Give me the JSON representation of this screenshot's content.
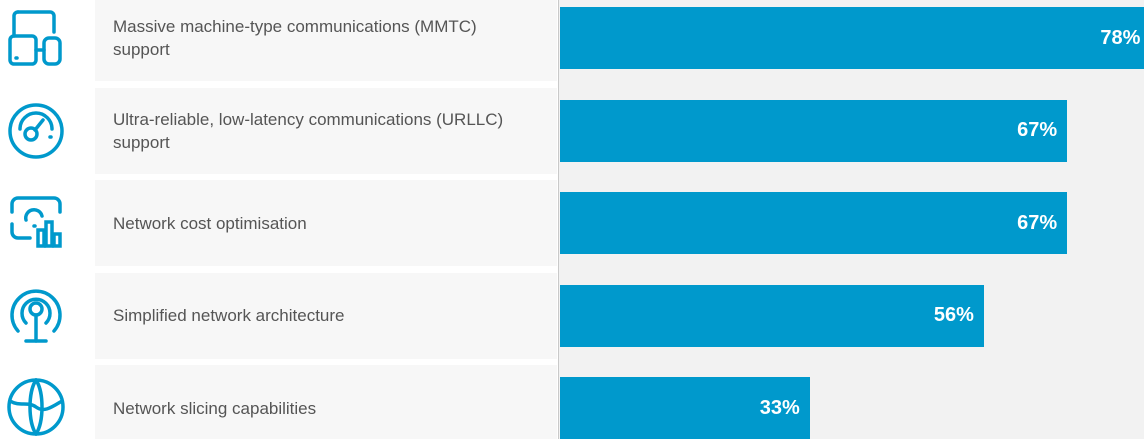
{
  "chart_data": {
    "type": "bar",
    "orientation": "horizontal",
    "categories": [
      "Massive machine-type communications (MMTC) support",
      "Ultra-reliable, low-latency communications (URLLC) support",
      "Network cost optimisation",
      "Simplified network architecture",
      "Network slicing capabilities"
    ],
    "values": [
      78,
      67,
      67,
      56,
      33
    ],
    "value_labels": [
      "78%",
      "67%",
      "67%",
      "56%",
      "33%"
    ],
    "color": "#0099cc",
    "xlim": [
      0,
      100
    ]
  }
}
